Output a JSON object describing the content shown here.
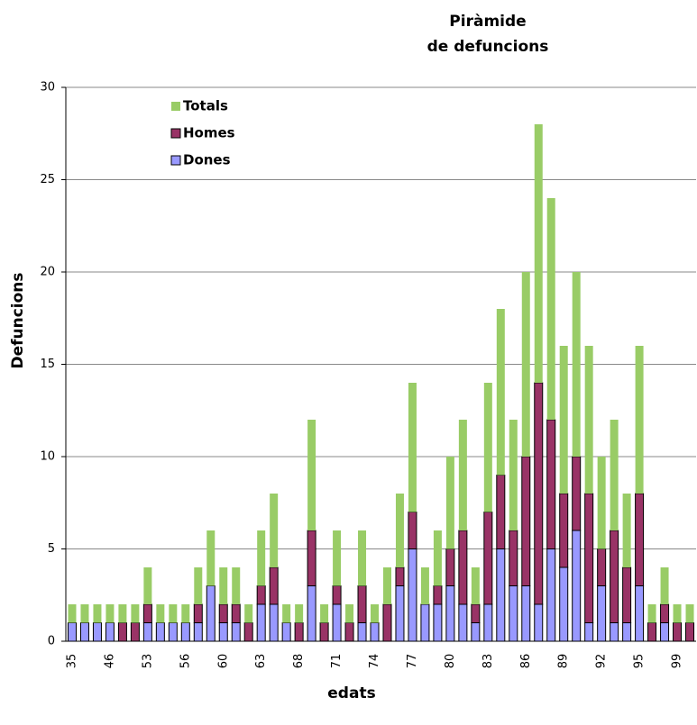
{
  "chart_data": {
    "type": "stacked_bar",
    "title": [
      "Piràmide",
      "de defuncions"
    ],
    "y_label": "Defuncions",
    "x_label": "edats",
    "categories": [
      "35",
      null,
      null,
      "46",
      null,
      null,
      "53",
      null,
      null,
      "56",
      null,
      null,
      "60",
      null,
      null,
      "63",
      null,
      null,
      "68",
      null,
      null,
      "71",
      null,
      null,
      "74",
      null,
      null,
      "77",
      null,
      null,
      "80",
      null,
      null,
      "83",
      null,
      null,
      "86",
      null,
      null,
      "89",
      null,
      null,
      "92",
      null,
      null,
      "95",
      null,
      null,
      "99",
      null
    ],
    "series": [
      {
        "name": "Dones",
        "color": "#9999ff",
        "values": [
          1,
          1,
          1,
          1,
          0,
          0,
          1,
          1,
          1,
          1,
          1,
          3,
          1,
          1,
          0,
          2,
          2,
          1,
          0,
          3,
          0,
          2,
          0,
          1,
          1,
          0,
          3,
          5,
          2,
          2,
          3,
          2,
          1,
          2,
          5,
          3,
          3,
          2,
          5,
          4,
          6,
          1,
          3,
          1,
          1,
          3,
          0,
          1,
          0,
          0
        ]
      },
      {
        "name": "Homes",
        "color": "#993366",
        "values": [
          0,
          0,
          0,
          0,
          1,
          1,
          1,
          0,
          0,
          0,
          1,
          0,
          1,
          1,
          1,
          1,
          2,
          0,
          1,
          3,
          1,
          1,
          1,
          2,
          0,
          2,
          1,
          2,
          0,
          1,
          2,
          4,
          1,
          5,
          4,
          3,
          7,
          12,
          7,
          4,
          4,
          7,
          2,
          5,
          3,
          5,
          1,
          1,
          1,
          1
        ]
      },
      {
        "name": "Totals",
        "color": "#99cc66",
        "values": [
          1,
          1,
          1,
          1,
          1,
          1,
          2,
          1,
          1,
          1,
          2,
          3,
          2,
          2,
          1,
          3,
          4,
          1,
          1,
          6,
          1,
          3,
          1,
          3,
          1,
          2,
          4,
          7,
          2,
          3,
          5,
          6,
          2,
          7,
          9,
          6,
          10,
          14,
          12,
          8,
          10,
          8,
          5,
          6,
          4,
          8,
          1,
          2,
          1,
          1
        ]
      }
    ],
    "ylim": [
      0,
      30
    ],
    "yticks": [
      0,
      5,
      10,
      15,
      20,
      25,
      30
    ],
    "grid": true
  }
}
